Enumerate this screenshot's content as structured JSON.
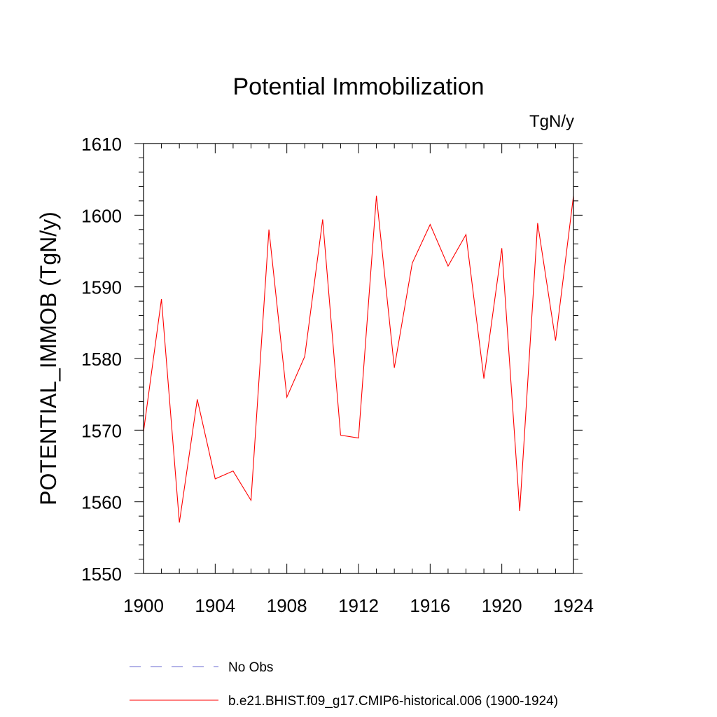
{
  "chart_data": {
    "type": "line",
    "title": "Potential Immobilization",
    "units_label": "TgN/y",
    "xlabel": "",
    "ylabel": "POTENTIAL_IMMOB  (TgN/y)",
    "xlim": [
      1900,
      1924
    ],
    "ylim": [
      1550,
      1610
    ],
    "x_ticks": [
      1900,
      1904,
      1908,
      1912,
      1916,
      1920,
      1924
    ],
    "x_tick_labels": [
      "1900",
      "1904",
      "1908",
      "1912",
      "1916",
      "1920",
      "1924"
    ],
    "y_ticks": [
      1550,
      1560,
      1570,
      1580,
      1590,
      1600,
      1610
    ],
    "y_tick_labels": [
      "1550",
      "1560",
      "1570",
      "1580",
      "1590",
      "1600",
      "1610"
    ],
    "grid": false,
    "legend_position": "bottom",
    "x": [
      1900,
      1901,
      1902,
      1903,
      1904,
      1905,
      1906,
      1907,
      1908,
      1909,
      1910,
      1911,
      1912,
      1913,
      1914,
      1915,
      1916,
      1917,
      1918,
      1919,
      1920,
      1921,
      1922,
      1923,
      1924
    ],
    "series": [
      {
        "name": "b.e21.BHIST.f09_g17.CMIP6-historical.006 (1900-1924)",
        "color": "#ff0000",
        "values": [
          1569.8,
          1588.3,
          1557.1,
          1574.3,
          1563.2,
          1564.3,
          1560.2,
          1598.0,
          1574.6,
          1580.3,
          1599.4,
          1569.3,
          1568.9,
          1602.7,
          1578.7,
          1593.3,
          1598.7,
          1592.9,
          1597.3,
          1577.2,
          1595.4,
          1558.7,
          1598.9,
          1582.5,
          1602.7
        ]
      }
    ],
    "legend": [
      {
        "label": "No Obs",
        "color": "#6a6ad0",
        "style": "dashed"
      },
      {
        "label": "b.e21.BHIST.f09_g17.CMIP6-historical.006 (1900-1924)",
        "color": "#ff0000",
        "style": "solid"
      }
    ]
  }
}
